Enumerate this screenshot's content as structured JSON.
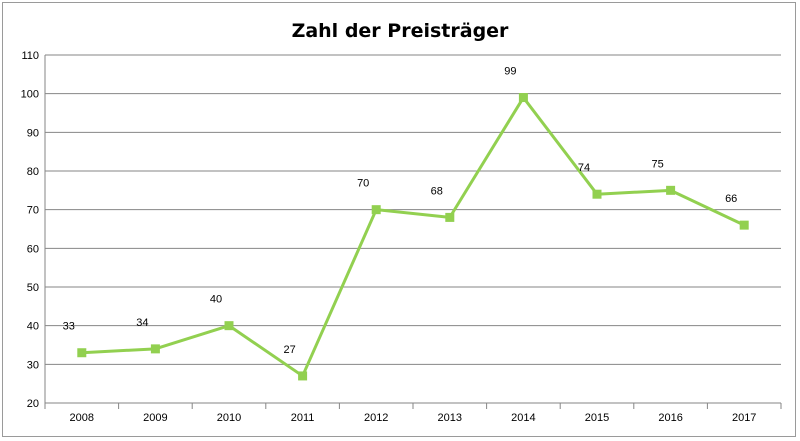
{
  "chart_data": {
    "type": "line",
    "title": "Zahl der Preisträger",
    "xlabel": "",
    "ylabel": "",
    "categories": [
      "2008",
      "2009",
      "2010",
      "2011",
      "2012",
      "2013",
      "2014",
      "2015",
      "2016",
      "2017"
    ],
    "series": [
      {
        "values": [
          33,
          34,
          40,
          27,
          70,
          68,
          99,
          74,
          75,
          66
        ],
        "color": "#92d050"
      }
    ],
    "data_labels": [
      "33",
      "34",
      "40",
      "27",
      "70",
      "68",
      "99",
      "74",
      "75",
      "66"
    ],
    "ylim": [
      20,
      110
    ],
    "yticks": [
      "20",
      "30",
      "40",
      "50",
      "60",
      "70",
      "80",
      "90",
      "100",
      "110"
    ],
    "grid": true,
    "legend": "none",
    "marker": "square",
    "gridColor": "#868686"
  }
}
